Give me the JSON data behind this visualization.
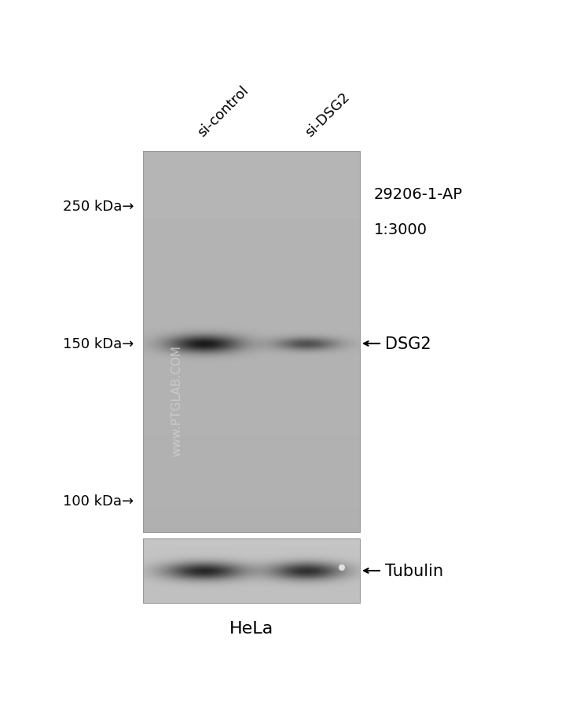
{
  "bg_color": "#ffffff",
  "gel_bg_light": 0.72,
  "gel_bg_dark": 0.6,
  "panel_border_color": "#888888",
  "text_color": "#000000",
  "watermark_color": "#d0d0d0",
  "label_si_control": "si-control",
  "label_si_dsg2": "si-DSG2",
  "label_antibody": "29206-1-AP",
  "label_dilution": "1:3000",
  "label_dsg2": "DSG2",
  "label_tubulin": "Tubulin",
  "label_hela": "HeLa",
  "marker_250_label": "250 kDa→",
  "marker_150_label": "150 kDa→",
  "marker_100_label": "100 kDa→",
  "watermark_line1": "www.",
  "watermark_line2": "PTGLAB.COM"
}
